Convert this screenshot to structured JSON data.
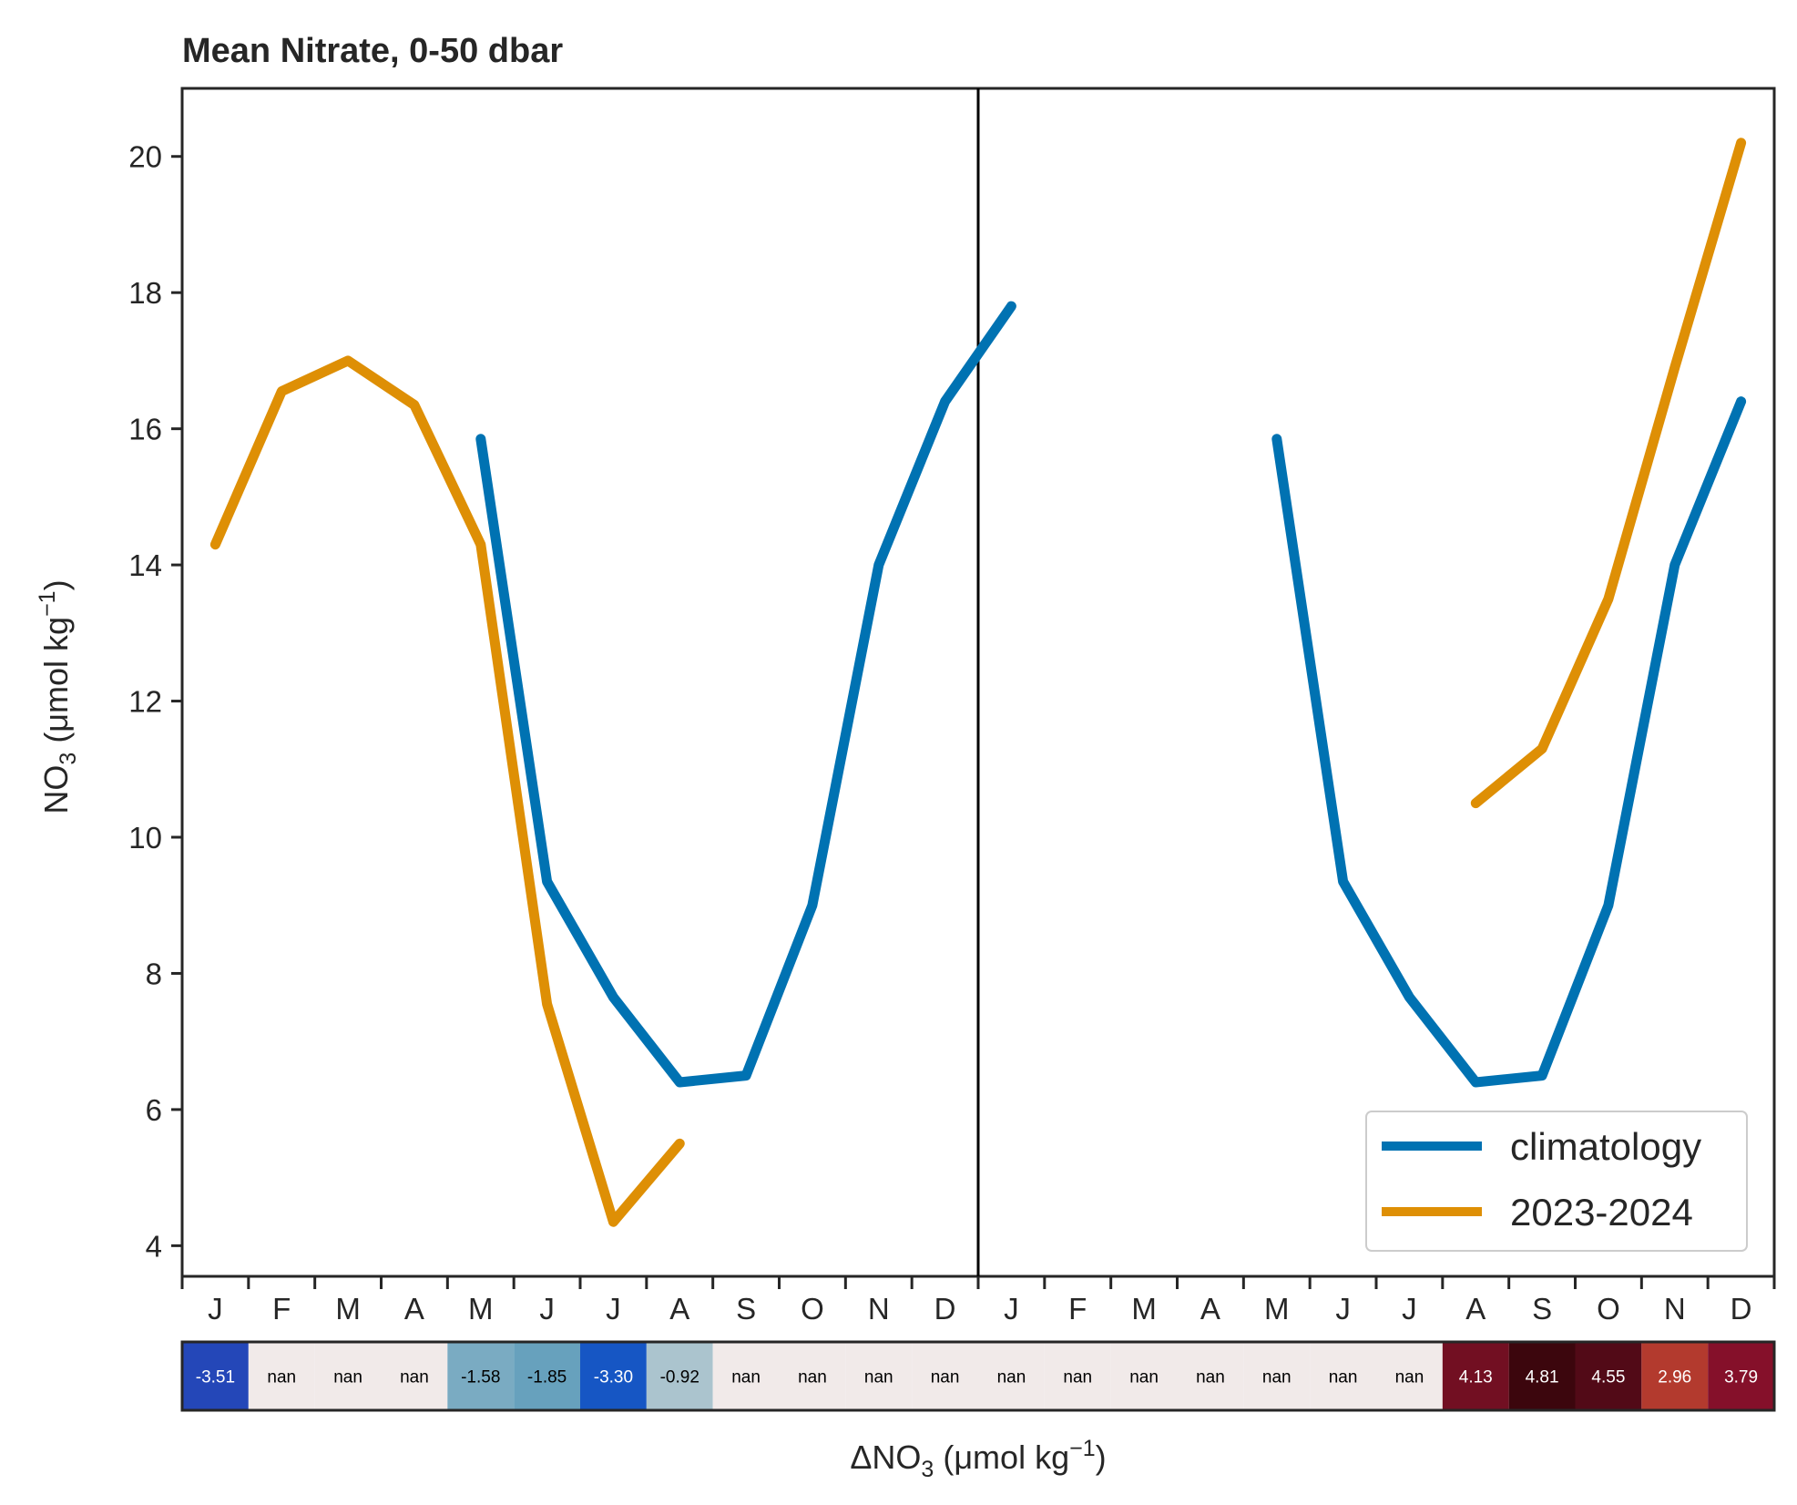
{
  "chart_data": {
    "type": "line",
    "title": "Mean Nitrate, 0-50 dbar",
    "ylabel": {
      "base": "NO",
      "sub": "3",
      "unit": " (μmol kg",
      "sup": "−1",
      "close": ")"
    },
    "ylim": [
      3.55,
      21.0
    ],
    "yticks": [
      4,
      6,
      8,
      10,
      12,
      14,
      16,
      18,
      20
    ],
    "x": [
      0,
      1,
      2,
      3,
      4,
      5,
      6,
      7,
      8,
      9,
      10,
      11,
      12,
      13,
      14,
      15,
      16,
      17,
      18,
      19,
      20,
      21,
      22,
      23
    ],
    "xlim": [
      -0.5,
      23.5
    ],
    "xticklabels": [
      "J",
      "F",
      "M",
      "A",
      "M",
      "J",
      "J",
      "A",
      "S",
      "O",
      "N",
      "D",
      "J",
      "F",
      "M",
      "A",
      "M",
      "J",
      "J",
      "A",
      "S",
      "O",
      "N",
      "D"
    ],
    "divider_x": 11.5,
    "series": [
      {
        "name": "climatology",
        "color": "#0072b2",
        "values": [
          null,
          null,
          null,
          null,
          15.85,
          9.35,
          7.65,
          6.4,
          6.5,
          9.0,
          14.0,
          16.4,
          17.8,
          null,
          null,
          null,
          15.85,
          9.35,
          7.65,
          6.4,
          6.5,
          9.0,
          14.0,
          16.4
        ]
      },
      {
        "name": "2023-2024",
        "color": "#de8f05",
        "values": [
          14.3,
          16.55,
          17.0,
          16.35,
          14.3,
          7.55,
          4.35,
          5.5,
          null,
          null,
          null,
          null,
          null,
          null,
          null,
          null,
          null,
          null,
          null,
          10.5,
          11.3,
          13.5,
          16.9,
          20.2
        ]
      }
    ],
    "legend": {
      "position": "lower-right"
    },
    "anomaly_strip": {
      "xlabel": {
        "prefix": "ΔNO",
        "sub": "3",
        "unit": " (μmol kg",
        "sup": "−1",
        "close": ")"
      },
      "cells": [
        {
          "label": "-3.51",
          "color": "#2447b8",
          "text_color": "#ffffff"
        },
        {
          "label": "nan",
          "color": "#f1eae9",
          "text_color": "#000000"
        },
        {
          "label": "nan",
          "color": "#f1eae9",
          "text_color": "#000000"
        },
        {
          "label": "nan",
          "color": "#f1eae9",
          "text_color": "#000000"
        },
        {
          "label": "-1.58",
          "color": "#7aabc2",
          "text_color": "#000000"
        },
        {
          "label": "-1.85",
          "color": "#67a1bd",
          "text_color": "#000000"
        },
        {
          "label": "-3.30",
          "color": "#1656c4",
          "text_color": "#ffffff"
        },
        {
          "label": "-0.92",
          "color": "#abc4ce",
          "text_color": "#000000"
        },
        {
          "label": "nan",
          "color": "#f1eae9",
          "text_color": "#000000"
        },
        {
          "label": "nan",
          "color": "#f1eae9",
          "text_color": "#000000"
        },
        {
          "label": "nan",
          "color": "#f1eae9",
          "text_color": "#000000"
        },
        {
          "label": "nan",
          "color": "#f1eae9",
          "text_color": "#000000"
        },
        {
          "label": "nan",
          "color": "#f1eae9",
          "text_color": "#000000"
        },
        {
          "label": "nan",
          "color": "#f1eae9",
          "text_color": "#000000"
        },
        {
          "label": "nan",
          "color": "#f1eae9",
          "text_color": "#000000"
        },
        {
          "label": "nan",
          "color": "#f1eae9",
          "text_color": "#000000"
        },
        {
          "label": "nan",
          "color": "#f1eae9",
          "text_color": "#000000"
        },
        {
          "label": "nan",
          "color": "#f1eae9",
          "text_color": "#000000"
        },
        {
          "label": "nan",
          "color": "#f1eae9",
          "text_color": "#000000"
        },
        {
          "label": "4.13",
          "color": "#720f22",
          "text_color": "#ffffff"
        },
        {
          "label": "4.81",
          "color": "#3c060d",
          "text_color": "#ffffff"
        },
        {
          "label": "4.55",
          "color": "#520a17",
          "text_color": "#ffffff"
        },
        {
          "label": "2.96",
          "color": "#b33a2e",
          "text_color": "#ffffff"
        },
        {
          "label": "3.79",
          "color": "#85102a",
          "text_color": "#ffffff"
        }
      ]
    }
  }
}
